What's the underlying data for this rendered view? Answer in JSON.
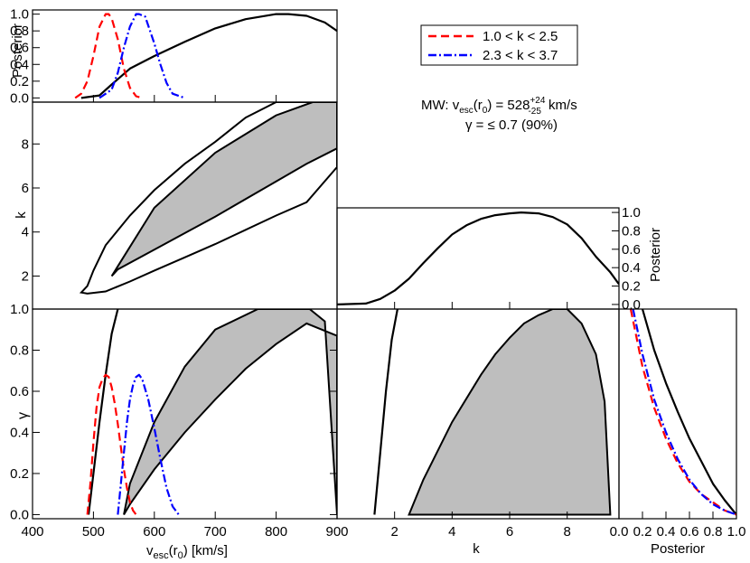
{
  "labels": {
    "vesc_axis": "v",
    "vesc_sub": "esc",
    "vesc_tail": "(r",
    "vesc_r_sub": "0",
    "vesc_unit": ") [km/s]",
    "k_axis": "k",
    "gamma_axis": "γ",
    "posterior": "Posterior"
  },
  "legend": {
    "entries": [
      {
        "label": "1.0 < k < 2.5",
        "color": "#ff0000",
        "dash": "dashed"
      },
      {
        "label": "2.3 < k < 3.7",
        "color": "#0000ff",
        "dash": "dashdot"
      }
    ]
  },
  "annotation": {
    "line1_prefix": "MW: v",
    "line1_sub1": "esc",
    "line1_mid": "(r",
    "line1_sub2": "0",
    "line1_eq": ") = 528",
    "line1_sup": "+24",
    "line1_lowsub": "-25",
    "line1_unit": " km/s",
    "line2": "γ = ≤ 0.7 (90%)"
  },
  "ticks": {
    "vesc": [
      "400",
      "500",
      "600",
      "700",
      "800",
      "900"
    ],
    "k": [
      "2",
      "4",
      "6",
      "8"
    ],
    "gamma": [
      "0.0",
      "0.2",
      "0.4",
      "0.6",
      "0.8",
      "1.0"
    ],
    "posterior": [
      "0.0",
      "0.2",
      "0.4",
      "0.6",
      "0.8",
      "1.0"
    ]
  },
  "colors": {
    "red": "#ff0000",
    "blue": "#0000ff",
    "fill": "#bebebe",
    "black": "#000000"
  },
  "chart_data": {
    "type": "line",
    "subplots": [
      {
        "name": "posterior_vesc",
        "xlabel": "",
        "ylabel": "Posterior",
        "xlim": [
          400,
          900
        ],
        "ylim": [
          -0.05,
          1.05
        ],
        "series": [
          {
            "color": "black",
            "dash": "solid",
            "x": [
              480,
              510,
              530,
              560,
              600,
              650,
              700,
              750,
              800,
              820,
              850,
              880,
              900
            ],
            "y": [
              0.0,
              0.03,
              0.16,
              0.35,
              0.5,
              0.67,
              0.83,
              0.94,
              1.0,
              1.0,
              0.98,
              0.9,
              0.8
            ]
          },
          {
            "name": "1.0 < k < 2.5",
            "color": "red",
            "dash": "dashed",
            "x": [
              470,
              480,
              490,
              500,
              510,
              520,
              525,
              530,
              540,
              550,
              560,
              570,
              580
            ],
            "y": [
              0.0,
              0.05,
              0.2,
              0.5,
              0.85,
              1.0,
              1.0,
              0.95,
              0.7,
              0.35,
              0.12,
              0.02,
              0.0
            ]
          },
          {
            "name": "2.3 < k < 3.7",
            "color": "blue",
            "dash": "dashdot",
            "x": [
              510,
              530,
              540,
              550,
              560,
              570,
              575,
              585,
              600,
              610,
              620,
              630,
              650
            ],
            "y": [
              0.0,
              0.1,
              0.3,
              0.6,
              0.85,
              1.0,
              1.0,
              0.97,
              0.65,
              0.4,
              0.18,
              0.05,
              0.0
            ]
          }
        ]
      },
      {
        "name": "joint_vesc_k",
        "xlabel": "",
        "ylabel": "k",
        "xlim": [
          400,
          900
        ],
        "ylim": [
          0.5,
          9.9
        ],
        "regions": [
          {
            "fill": true,
            "x": [
              530,
              540,
              600,
              700,
              800,
              850,
              900,
              900,
              860,
              800,
              700,
              600,
              530
            ],
            "y": [
              2.0,
              2.3,
              3.2,
              4.7,
              6.3,
              7.1,
              7.8,
              9.9,
              9.9,
              9.3,
              7.6,
              5.1,
              2.0
            ]
          },
          {
            "fill": false,
            "x": [
              480,
              490,
              520,
              560,
              600,
              650,
              700,
              750,
              800,
              850,
              900,
              900,
              850,
              800,
              750,
              700,
              650,
              600,
              560,
              520,
              500,
              490,
              480
            ],
            "y": [
              1.25,
              1.2,
              1.3,
              1.75,
              2.25,
              2.85,
              3.45,
              4.1,
              4.75,
              5.35,
              6.95,
              9.9,
              9.9,
              9.9,
              9.2,
              8.1,
              7.1,
              5.9,
              4.75,
              3.4,
              2.25,
              1.55,
              1.25
            ]
          }
        ]
      },
      {
        "name": "posterior_k",
        "xlabel": "",
        "ylabel": "Posterior",
        "xlim": [
          0.0,
          9.8
        ],
        "ylim": [
          -0.05,
          1.05
        ],
        "series": [
          {
            "color": "black",
            "dash": "solid",
            "x": [
              0.0,
              1.0,
              1.5,
              2.0,
              2.5,
              3.0,
              3.5,
              4.0,
              4.5,
              5.0,
              5.5,
              6.0,
              6.4,
              7.0,
              7.5,
              8.0,
              8.5,
              9.0,
              9.5,
              9.8
            ],
            "y": [
              0.0,
              0.01,
              0.06,
              0.15,
              0.28,
              0.45,
              0.61,
              0.76,
              0.86,
              0.93,
              0.97,
              0.99,
              1.0,
              0.99,
              0.95,
              0.87,
              0.72,
              0.52,
              0.35,
              0.22
            ]
          }
        ]
      },
      {
        "name": "joint_vesc_gamma",
        "xlabel": "vesc(r0) [km/s]",
        "ylabel": "γ",
        "xlim": [
          400,
          900
        ],
        "ylim": [
          -0.02,
          1.0
        ],
        "regions": [
          {
            "fill": true,
            "x": [
              550,
              560,
              600,
              650,
              700,
              750,
              800,
              850,
              900,
              900,
              880,
              855,
              800,
              770,
              700,
              650,
              600,
              560,
              550
            ],
            "y": [
              0.0,
              0.05,
              0.22,
              0.4,
              0.56,
              0.71,
              0.83,
              0.93,
              0.87,
              0.0,
              0.94,
              1.0,
              1.0,
              1.0,
              0.9,
              0.72,
              0.45,
              0.15,
              0.0
            ]
          }
        ],
        "series": [
          {
            "color": "black",
            "dash": "solid",
            "x": [
              492,
              500,
              510,
              520,
              530,
              540
            ],
            "y": [
              0.0,
              0.2,
              0.45,
              0.68,
              0.88,
              1.0
            ]
          },
          {
            "name": "1.0 < k < 2.5",
            "color": "red",
            "dash": "dashed",
            "x": [
              490,
              495,
              500,
              505,
              510,
              515,
              520,
              525,
              530,
              535,
              540,
              545,
              550,
              555,
              560,
              565,
              570
            ],
            "y": [
              0.0,
              0.15,
              0.35,
              0.52,
              0.62,
              0.66,
              0.68,
              0.67,
              0.62,
              0.54,
              0.44,
              0.33,
              0.22,
              0.13,
              0.06,
              0.02,
              0.0
            ]
          },
          {
            "name": "2.3 < k < 3.7",
            "color": "blue",
            "dash": "dashdot",
            "x": [
              540,
              550,
              555,
              560,
              565,
              570,
              575,
              580,
              590,
              600,
              610,
              620,
              630,
              640
            ],
            "y": [
              0.0,
              0.3,
              0.45,
              0.56,
              0.63,
              0.67,
              0.68,
              0.66,
              0.56,
              0.42,
              0.27,
              0.13,
              0.04,
              0.0
            ]
          }
        ]
      },
      {
        "name": "joint_k_gamma",
        "xlabel": "k",
        "ylabel": "",
        "xlim": [
          0.0,
          9.8
        ],
        "ylim": [
          -0.02,
          1.0
        ],
        "regions": [
          {
            "fill": true,
            "x": [
              2.5,
              3.0,
              4.0,
              5.0,
              5.5,
              6.0,
              6.5,
              7.0,
              7.5,
              8.0,
              8.5,
              9.0,
              9.3,
              9.5,
              2.5
            ],
            "y": [
              0.0,
              0.17,
              0.45,
              0.68,
              0.78,
              0.86,
              0.93,
              0.97,
              1.0,
              1.0,
              0.93,
              0.78,
              0.55,
              0.0,
              0.0
            ]
          }
        ],
        "series": [
          {
            "color": "black",
            "dash": "solid",
            "x": [
              1.3,
              1.5,
              1.7,
              1.9,
              2.1
            ],
            "y": [
              0.0,
              0.3,
              0.6,
              0.85,
              1.0
            ]
          }
        ]
      },
      {
        "name": "posterior_gamma",
        "xlabel": "Posterior",
        "ylabel": "",
        "xlim": [
          0.0,
          1.0
        ],
        "ylim": [
          -0.02,
          1.0
        ],
        "series": [
          {
            "color": "black",
            "dash": "solid",
            "x": [
              0.2,
              0.3,
              0.4,
              0.5,
              0.6,
              0.7,
              0.8,
              0.9,
              1.0
            ],
            "y": [
              1.0,
              0.8,
              0.64,
              0.5,
              0.37,
              0.26,
              0.15,
              0.07,
              0.0
            ]
          },
          {
            "name": "1.0 < k < 2.5",
            "color": "red",
            "dash": "dashed",
            "x": [
              0.1,
              0.2,
              0.3,
              0.4,
              0.5,
              0.6,
              0.7,
              0.8,
              0.9,
              1.0
            ],
            "y": [
              1.0,
              0.72,
              0.52,
              0.37,
              0.25,
              0.16,
              0.1,
              0.06,
              0.02,
              0.0
            ]
          },
          {
            "name": "2.3 < k < 3.7",
            "color": "blue",
            "dash": "dashdot",
            "x": [
              0.12,
              0.2,
              0.3,
              0.4,
              0.5,
              0.6,
              0.7,
              0.8,
              0.9,
              1.0
            ],
            "y": [
              1.0,
              0.78,
              0.56,
              0.4,
              0.27,
              0.17,
              0.1,
              0.05,
              0.02,
              0.0
            ]
          }
        ]
      }
    ]
  }
}
